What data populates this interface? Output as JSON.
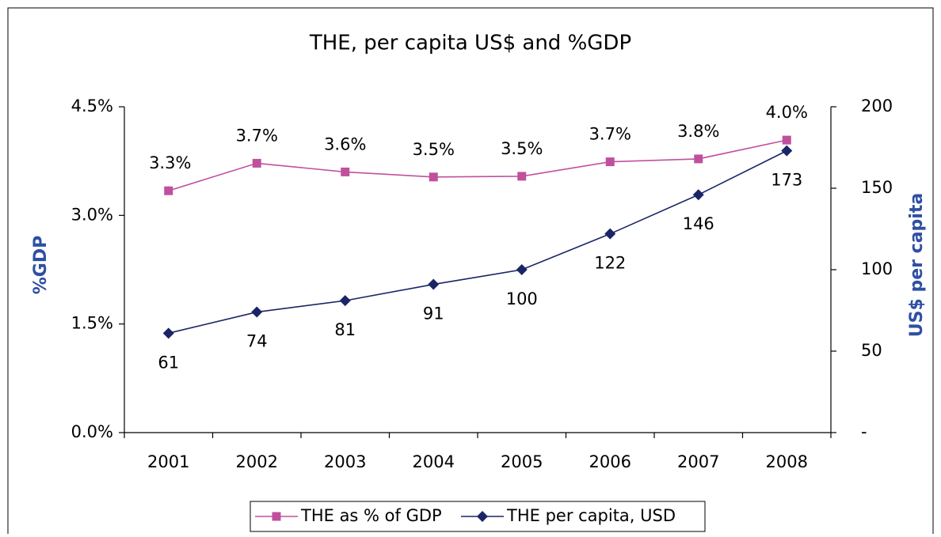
{
  "chart_data": {
    "type": "line",
    "title": "THE, per capita US$ and %GDP",
    "categories": [
      "2001",
      "2002",
      "2003",
      "2004",
      "2005",
      "2006",
      "2007",
      "2008"
    ],
    "series": [
      {
        "name": "THE as % of GDP",
        "color": "#c0509d",
        "marker": "square",
        "values": [
          3.34,
          3.72,
          3.6,
          3.53,
          3.54,
          3.74,
          3.78,
          4.04
        ],
        "value_labels": [
          "3.3%",
          "3.7%",
          "3.6%",
          "3.5%",
          "3.5%",
          "3.7%",
          "3.8%",
          "4.0%"
        ]
      },
      {
        "name": "THE per capita, USD",
        "color": "#1b2566",
        "marker": "diamond",
        "axis": "y2",
        "values": [
          61,
          74,
          81,
          91,
          100,
          122,
          146,
          173
        ]
      }
    ],
    "ylabel": "%GDP",
    "y2label": "US$ per capita",
    "ylim": [
      0,
      4.5
    ],
    "yticks": [
      {
        "value": 0,
        "label": "0.0%"
      },
      {
        "value": 1.5,
        "label": "1.5%"
      },
      {
        "value": 3,
        "label": "3.0%"
      },
      {
        "value": 4.5,
        "label": "4.5%"
      }
    ],
    "y2lim": [
      0,
      200
    ],
    "y2ticks": [
      {
        "value": 0,
        "label": "-"
      },
      50,
      100,
      150,
      200
    ],
    "grid": false,
    "legend": "bottom"
  }
}
